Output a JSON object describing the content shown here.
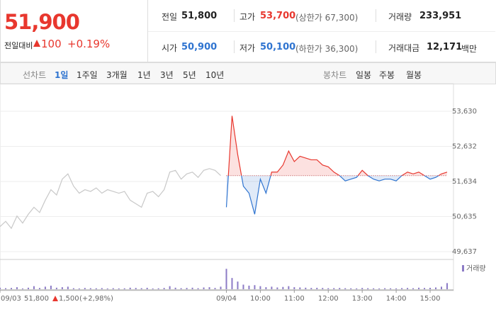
{
  "header": {
    "price": "51,900",
    "change_label": "전일대비",
    "change": "100",
    "change_pct": "+0.19%"
  },
  "info": {
    "prev_label": "전일",
    "prev": "51,800",
    "high_label": "고가",
    "high": "53,700",
    "upper_limit": "(상한가 67,300)",
    "volume_label": "거래량",
    "volume": "233,951",
    "open_label": "시가",
    "open": "50,900",
    "low_label": "저가",
    "low": "50,100",
    "lower_limit": "(하한가 36,300)",
    "amount_label": "거래대금",
    "amount": "12,171",
    "amount_unit": "백만"
  },
  "tabs": {
    "line_label": "선차트",
    "periods": [
      "1일",
      "1주일",
      "3개월",
      "1년",
      "3년",
      "5년",
      "10년"
    ],
    "candle_label": "봉차트",
    "candles": [
      "일봉",
      "주봉",
      "월봉"
    ]
  },
  "chart_data": {
    "type": "line",
    "categories": [
      "09/03",
      null,
      null,
      null,
      null,
      null,
      null,
      null,
      null,
      null,
      null,
      null,
      null,
      null,
      null,
      null,
      null,
      null,
      null,
      null,
      null,
      null,
      null,
      null,
      null,
      null,
      null,
      null,
      null,
      null,
      null,
      null,
      null,
      null,
      null,
      null,
      null,
      null,
      null,
      null,
      "09/04",
      null,
      null,
      null,
      null,
      null,
      "10:00",
      null,
      null,
      null,
      null,
      null,
      "11:00",
      null,
      null,
      null,
      null,
      null,
      "12:00",
      null,
      null,
      null,
      null,
      null,
      "13:00",
      null,
      null,
      null,
      null,
      null,
      "14:00",
      null,
      null,
      null,
      null,
      null,
      "15:00",
      null,
      null,
      null
    ],
    "series": [
      {
        "color": "#c8c8c8",
        "values": [
          50350,
          50500,
          50300,
          50650,
          50450,
          50700,
          50900,
          50750,
          51100,
          51400,
          51250,
          51700,
          51850,
          51500,
          51300,
          51400,
          51350,
          51450,
          51300,
          51400,
          51350,
          51300,
          51350,
          51100,
          51000,
          50900,
          51300,
          51350,
          51200,
          51400,
          51900,
          51950,
          51700,
          51850,
          51900,
          51750,
          51950,
          52000,
          51950,
          51800,
          null,
          null,
          null,
          null,
          null,
          null,
          null,
          null,
          null,
          null,
          null,
          null,
          null,
          null,
          null,
          null,
          null,
          null,
          null,
          null,
          null,
          null,
          null,
          null,
          null,
          null,
          null,
          null,
          null,
          null,
          null,
          null,
          null,
          null,
          null,
          null,
          null,
          null,
          null,
          null
        ]
      },
      {
        "up_color": "#e8372e",
        "down_color": "#2f74d0",
        "values": [
          null,
          null,
          null,
          null,
          null,
          null,
          null,
          null,
          null,
          null,
          null,
          null,
          null,
          null,
          null,
          null,
          null,
          null,
          null,
          null,
          null,
          null,
          null,
          null,
          null,
          null,
          null,
          null,
          null,
          null,
          null,
          null,
          null,
          null,
          null,
          null,
          null,
          null,
          null,
          null,
          50900,
          53500,
          52400,
          51500,
          51300,
          50700,
          51700,
          51300,
          51900,
          51900,
          52100,
          52500,
          52200,
          52350,
          52300,
          52250,
          52250,
          52100,
          52050,
          51900,
          51800,
          51650,
          51700,
          51750,
          51950,
          51800,
          51700,
          51650,
          51700,
          51700,
          51650,
          51800,
          51900,
          51850,
          51900,
          51800,
          51700,
          51750,
          51850,
          51900
        ]
      },
      {
        "name": "거래량",
        "color": "#8c7bc6",
        "axis": "y2",
        "values": [
          3000,
          2000,
          2500,
          4000,
          1500,
          3000,
          6000,
          2500,
          5000,
          7000,
          3000,
          4000,
          5000,
          2000,
          1500,
          2500,
          2000,
          1800,
          2200,
          1500,
          2000,
          1600,
          1800,
          3000,
          2500,
          2000,
          2800,
          1500,
          1800,
          2500,
          6000,
          3000,
          2000,
          2500,
          3000,
          2000,
          3500,
          4000,
          2500,
          5000,
          40000,
          22000,
          15000,
          9000,
          7000,
          8000,
          6000,
          4000,
          5000,
          3500,
          4500,
          6000,
          4000,
          3500,
          3000,
          2500,
          2800,
          2500,
          2000,
          2200,
          2500,
          2000,
          1800,
          1600,
          2500,
          2000,
          1800,
          1500,
          2000,
          1800,
          1600,
          2200,
          2500,
          2000,
          3000,
          2500,
          2800,
          3500,
          5000,
          12000
        ]
      }
    ],
    "baseline": 51800,
    "ylim": [
      49435,
      53973
    ],
    "yticks": [
      {
        "value": 53630,
        "label": "53,630"
      },
      {
        "value": 52632,
        "label": "52,632"
      },
      {
        "value": 51634,
        "label": "51,634"
      },
      {
        "value": 50635,
        "label": "50,635"
      },
      {
        "value": 49637,
        "label": "49,637"
      }
    ],
    "y2lim": [
      0,
      50000
    ],
    "grid": true,
    "annotations": [
      "51,800",
      "1,500",
      "(+2,98%)"
    ]
  }
}
